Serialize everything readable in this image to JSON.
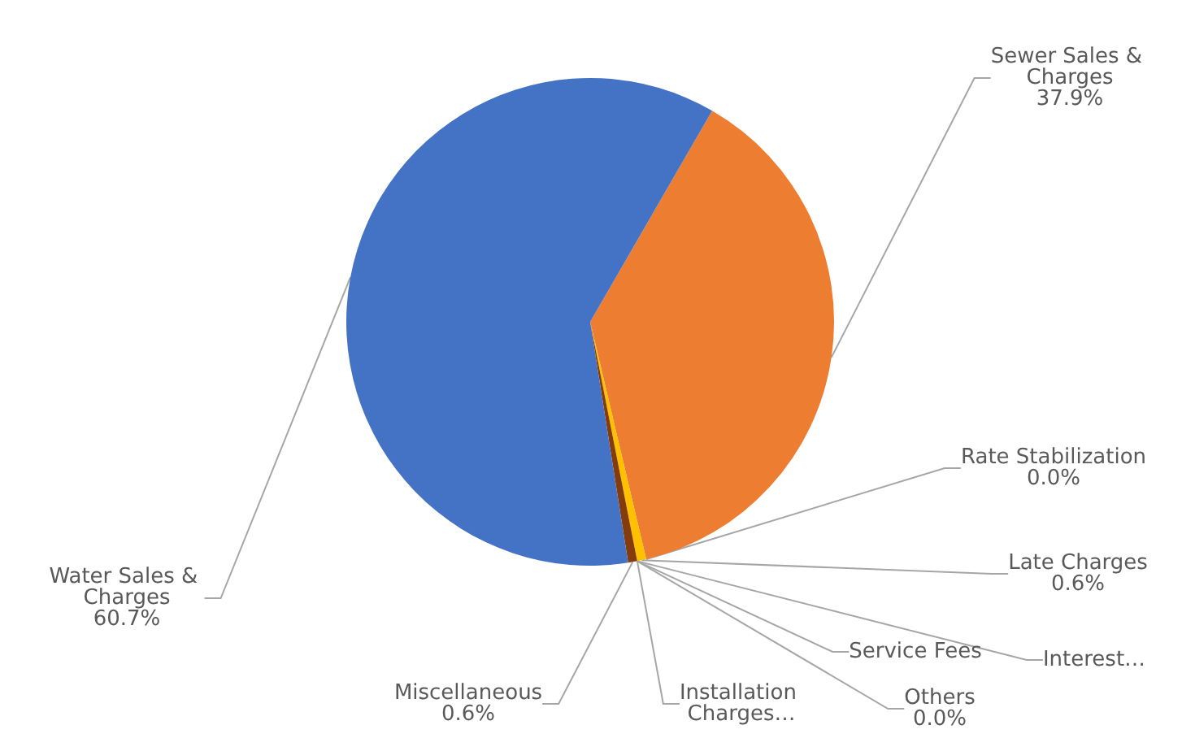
{
  "chart_data": {
    "type": "pie",
    "categories": [
      "Sewer Sales & Charges",
      "Rate Stabilization",
      "Late Charges",
      "Interest…",
      "Service Fees",
      "Others",
      "Installation Charges…",
      "Miscellaneous",
      "Water Sales & Charges"
    ],
    "values": [
      37.9,
      0.0,
      0.6,
      0.0,
      0.0,
      0.0,
      0.0,
      0.6,
      60.7
    ],
    "value_labels": [
      "37.9%",
      "0.0%",
      "0.6%",
      null,
      null,
      "0.0%",
      null,
      "0.6%",
      "60.7%"
    ],
    "colors": [
      "#ed7d31",
      "#a5a5a5",
      "#ffc000",
      "#5b9bd5",
      "#70ad47",
      "#264478",
      "#9e480e",
      "#843c0c",
      "#4472c4"
    ],
    "legend": false
  }
}
